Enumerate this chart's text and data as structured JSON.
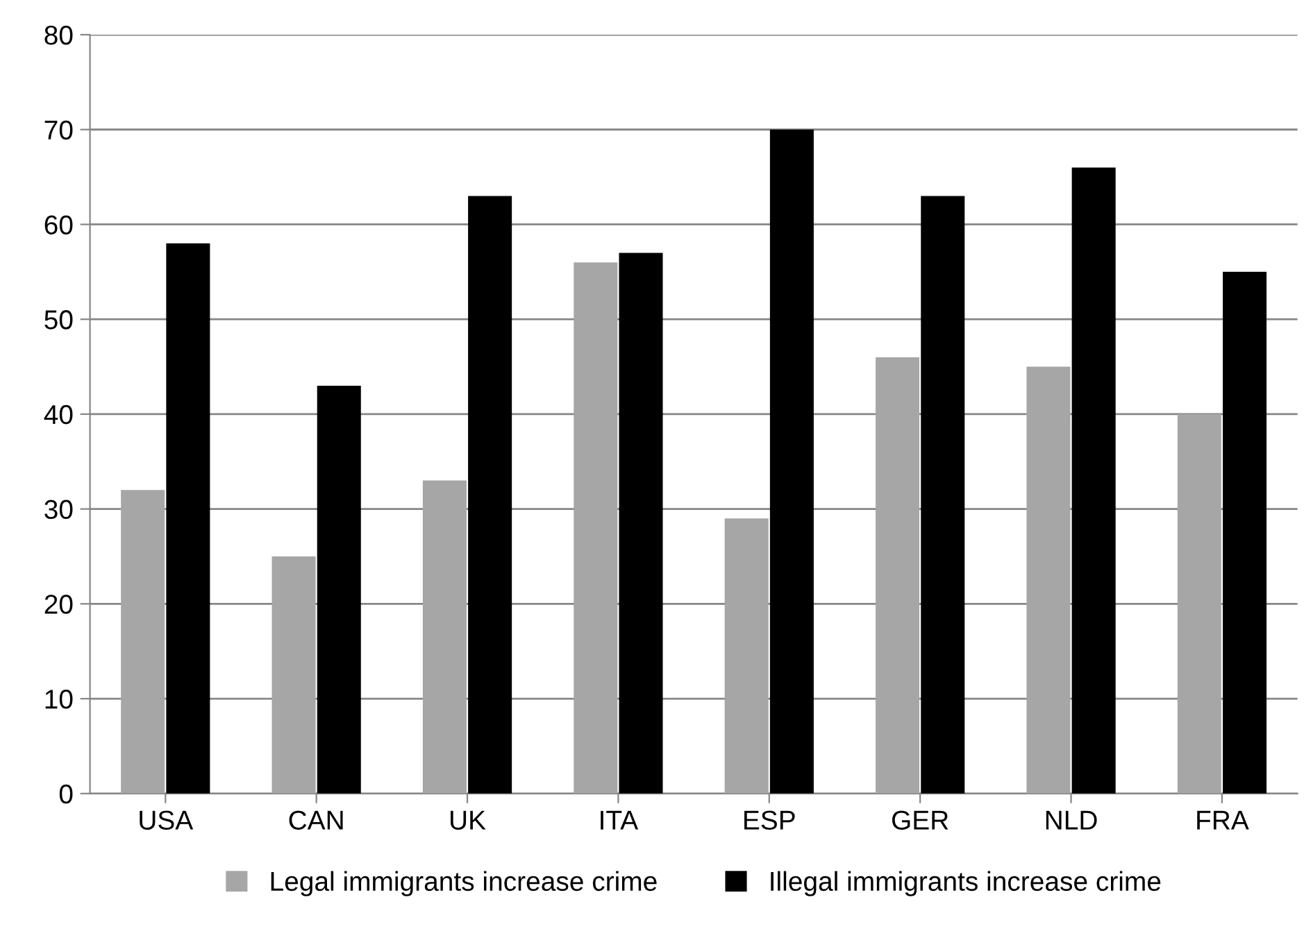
{
  "chart_data": {
    "type": "bar",
    "categories": [
      "USA",
      "CAN",
      "UK",
      "ITA",
      "ESP",
      "GER",
      "NLD",
      "FRA"
    ],
    "series": [
      {
        "name": "Legal immigrants increase crime",
        "color": "#a6a6a6",
        "values": [
          32,
          25,
          33,
          56,
          29,
          46,
          45,
          40
        ]
      },
      {
        "name": "Illegal immigrants increase crime",
        "color": "#000000",
        "values": [
          58,
          43,
          63,
          57,
          70,
          63,
          66,
          55
        ]
      }
    ],
    "ylim": [
      0,
      80
    ],
    "yticks": [
      0,
      10,
      20,
      30,
      40,
      50,
      60,
      70,
      80
    ],
    "grid": "y",
    "legend": "bottom"
  }
}
